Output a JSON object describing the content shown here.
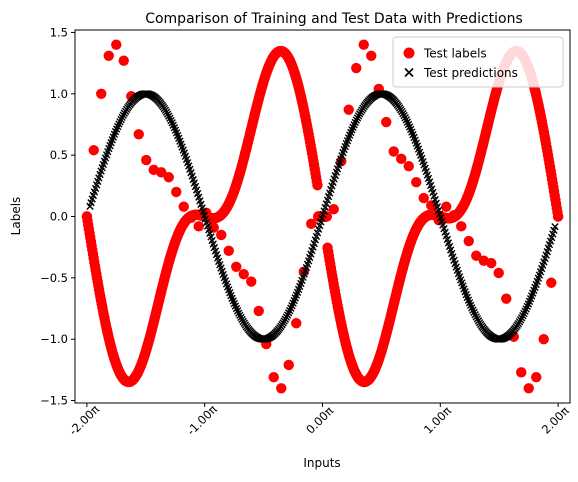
{
  "chart_data": {
    "type": "scatter",
    "title": "Comparison of Training and Test Data with Predictions",
    "xlabel": "Inputs",
    "ylabel": "Labels",
    "xlim": [
      -6.6,
      6.6
    ],
    "ylim": [
      -1.52,
      1.52
    ],
    "x_ticks": [
      {
        "value": -6.283185,
        "label": "-2.00π"
      },
      {
        "value": -3.141593,
        "label": "-1.00π"
      },
      {
        "value": 0.0,
        "label": "0.00π"
      },
      {
        "value": 3.141593,
        "label": "1.00π"
      },
      {
        "value": 6.283185,
        "label": "2.00π"
      }
    ],
    "y_ticks": [
      {
        "value": -1.5,
        "label": "−1.5"
      },
      {
        "value": -1.0,
        "label": "−1.0"
      },
      {
        "value": -0.5,
        "label": "−0.5"
      },
      {
        "value": 0.0,
        "label": "0.0"
      },
      {
        "value": 0.5,
        "label": "0.5"
      },
      {
        "value": 1.0,
        "label": "1.0"
      },
      {
        "value": 1.5,
        "label": "1.5"
      }
    ],
    "grid": false,
    "legend_position": "top-right",
    "series": [
      {
        "name": "Test labels",
        "marker": "circle",
        "color": "#ff0000",
        "x_range": [
          -6.283185,
          6.283185
        ],
        "curve": "-sin(x) - 0.5*sin(2x) + 0.1*sin(x)*cos(2x)",
        "x": [
          -6.2832,
          -6.1,
          -5.9,
          -5.7,
          -5.5,
          -5.3,
          -5.1,
          -4.9,
          -4.7,
          -4.5,
          -4.3,
          -4.1,
          -3.9,
          -3.7,
          -3.5,
          -3.3,
          -3.1,
          -2.9,
          -2.7,
          -2.5,
          -2.3,
          -2.1,
          -1.9,
          -1.7,
          -1.5,
          -1.3,
          -1.1,
          -0.9,
          -0.7,
          -0.5,
          -0.3,
          -0.1,
          0.1,
          0.3,
          0.5,
          0.7,
          0.9,
          1.1,
          1.3,
          1.5,
          1.7,
          1.9,
          2.1,
          2.3,
          2.5,
          2.7,
          2.9,
          3.1,
          3.3,
          3.5,
          3.7,
          3.9,
          4.1,
          4.3,
          4.5,
          4.7,
          4.9,
          5.1,
          5.3,
          5.5,
          5.7,
          5.9,
          6.1,
          6.2832
        ],
        "y": [
          0.0,
          0.54,
          1.0,
          1.31,
          1.4,
          1.27,
          0.98,
          0.67,
          0.46,
          0.38,
          0.36,
          0.32,
          0.2,
          0.08,
          -0.01,
          -0.08,
          0.03,
          -0.09,
          -0.15,
          -0.28,
          -0.41,
          -0.47,
          -0.53,
          -0.77,
          -1.04,
          -1.31,
          -1.4,
          -1.21,
          -0.87,
          -0.45,
          -0.06,
          0.0,
          0.0,
          0.06,
          0.45,
          0.87,
          1.21,
          1.4,
          1.31,
          1.04,
          0.77,
          0.53,
          0.47,
          0.41,
          0.28,
          0.15,
          0.09,
          -0.03,
          0.08,
          0.01,
          -0.08,
          -0.2,
          -0.32,
          -0.36,
          -0.38,
          -0.46,
          -0.67,
          -0.98,
          -1.27,
          -1.4,
          -1.31,
          -1.0,
          -0.54,
          0.0
        ]
      },
      {
        "name": "Test predictions",
        "marker": "x",
        "color": "#000000",
        "x_range": [
          -6.2,
          6.2
        ],
        "curve": "sin(x)",
        "x": [
          -6.2,
          -5.8,
          -5.4,
          -5.0,
          -4.6,
          -4.2,
          -3.8,
          -3.4,
          -3.0,
          -2.6,
          -2.2,
          -1.8,
          -1.4,
          -1.0,
          -0.6,
          -0.2,
          0.2,
          0.6,
          1.0,
          1.4,
          1.8,
          2.2,
          2.6,
          3.0,
          3.4,
          3.8,
          4.2,
          4.6,
          5.0,
          5.4,
          5.8,
          6.2
        ],
        "y": [
          0.08,
          0.46,
          0.77,
          0.96,
          0.99,
          0.87,
          0.61,
          0.26,
          -0.14,
          -0.52,
          -0.81,
          -0.97,
          -0.99,
          -0.84,
          -0.56,
          -0.2,
          0.2,
          0.56,
          0.84,
          0.99,
          0.97,
          0.81,
          0.52,
          0.14,
          -0.26,
          -0.61,
          -0.87,
          -0.99,
          -0.96,
          -0.77,
          -0.46,
          -0.08
        ]
      }
    ]
  },
  "legend": {
    "items": [
      {
        "label": "Test labels",
        "color": "#ff0000",
        "marker": "circle"
      },
      {
        "label": "Test predictions",
        "color": "#000000",
        "marker": "x"
      }
    ]
  }
}
